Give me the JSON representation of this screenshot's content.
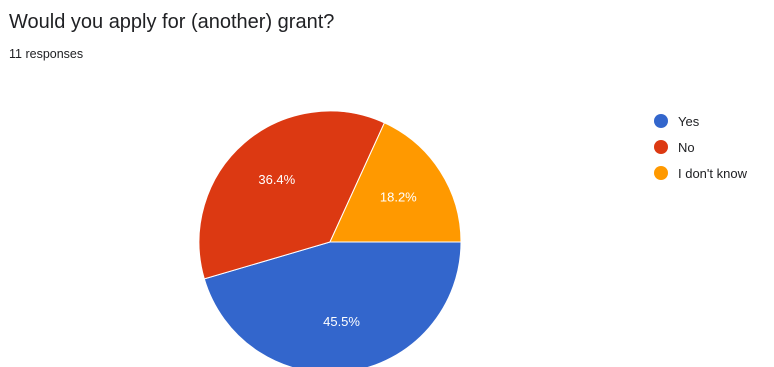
{
  "header": {
    "title": "Would you apply for (another) grant?",
    "subtitle": "11 responses"
  },
  "chart_data": {
    "type": "pie",
    "title": "Would you apply for (another) grant?",
    "subtitle": "11 responses",
    "legend_position": "right",
    "slices": [
      {
        "label": "Yes",
        "value": 45.5,
        "display": "45.5%",
        "color": "#3366cc"
      },
      {
        "label": "No",
        "value": 36.4,
        "display": "36.4%",
        "color": "#dc3912"
      },
      {
        "label": "I don't know",
        "value": 18.2,
        "display": "18.2%",
        "color": "#ff9900"
      }
    ]
  }
}
